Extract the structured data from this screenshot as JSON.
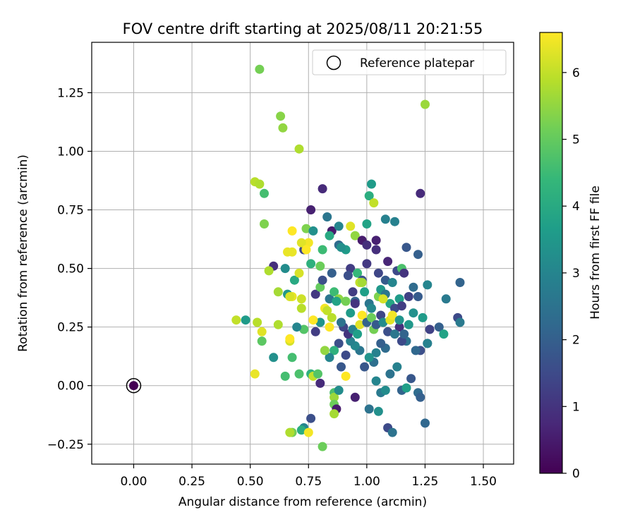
{
  "chart_data": {
    "type": "scatter",
    "title": "FOV centre drift starting at 2025/08/11 20:21:55",
    "xlabel": "Angular distance from reference (arcmin)",
    "ylabel": "Rotation from reference (arcmin)",
    "xlim": [
      -0.18,
      1.63
    ],
    "ylim": [
      -0.335,
      1.465
    ],
    "xticks": [
      "0.00",
      "0.25",
      "0.50",
      "0.75",
      "1.00",
      "1.25",
      "1.50"
    ],
    "xtick_values": [
      0,
      0.25,
      0.5,
      0.75,
      1.0,
      1.25,
      1.5
    ],
    "yticks": [
      "−0.25",
      "0.00",
      "0.25",
      "0.50",
      "0.75",
      "1.00",
      "1.25"
    ],
    "ytick_values": [
      -0.25,
      0,
      0.25,
      0.5,
      0.75,
      1.0,
      1.25
    ],
    "grid": true,
    "legend": {
      "position": "top-right",
      "entries": [
        "Reference platepar"
      ]
    },
    "reference_point": {
      "x": 0.0,
      "y": 0.0,
      "label": "Reference platepar"
    },
    "colorbar": {
      "label": "Hours from first FF file",
      "colormap": "viridis",
      "min": 0,
      "max": 6.6,
      "ticks": [
        "0",
        "1",
        "2",
        "3",
        "4",
        "5",
        "6"
      ],
      "tick_values": [
        0,
        1,
        2,
        3,
        4,
        5,
        6
      ],
      "stops": [
        "#440154",
        "#482878",
        "#3e4989",
        "#31688e",
        "#26828e",
        "#1f9e89",
        "#35b779",
        "#6ece58",
        "#b5de2b",
        "#fde725"
      ]
    },
    "points": [
      [
        0.54,
        1.35,
        5.2
      ],
      [
        0.63,
        1.15,
        5.4
      ],
      [
        0.64,
        1.1,
        5.5
      ],
      [
        1.25,
        1.2,
        5.6
      ],
      [
        0.71,
        1.01,
        5.8
      ],
      [
        0.52,
        0.87,
        5.9
      ],
      [
        0.54,
        0.86,
        5.8
      ],
      [
        0.56,
        0.82,
        4.6
      ],
      [
        0.81,
        0.84,
        0.8
      ],
      [
        1.02,
        0.86,
        3.6
      ],
      [
        1.01,
        0.81,
        4.1
      ],
      [
        1.23,
        0.82,
        0.8
      ],
      [
        1.03,
        0.78,
        6.0
      ],
      [
        0.56,
        0.69,
        5.3
      ],
      [
        0.76,
        0.75,
        0.6
      ],
      [
        0.83,
        0.72,
        2.6
      ],
      [
        0.68,
        0.66,
        6.6
      ],
      [
        0.74,
        0.67,
        5.3
      ],
      [
        0.77,
        0.66,
        3.3
      ],
      [
        0.85,
        0.66,
        0.5
      ],
      [
        0.88,
        0.68,
        3.0
      ],
      [
        0.93,
        0.68,
        6.3
      ],
      [
        1.0,
        0.69,
        3.8
      ],
      [
        1.08,
        0.71,
        2.9
      ],
      [
        1.12,
        0.7,
        2.9
      ],
      [
        0.73,
        0.58,
        1.4
      ],
      [
        0.75,
        0.61,
        6.5
      ],
      [
        0.72,
        0.61,
        6.3
      ],
      [
        0.74,
        0.58,
        6.6
      ],
      [
        0.68,
        0.57,
        6.4
      ],
      [
        0.66,
        0.57,
        6.4
      ],
      [
        0.6,
        0.51,
        0.9
      ],
      [
        0.58,
        0.49,
        5.8
      ],
      [
        0.65,
        0.5,
        3.2
      ],
      [
        0.69,
        0.45,
        4.0
      ],
      [
        0.71,
        0.48,
        6.2
      ],
      [
        0.76,
        0.52,
        4.2
      ],
      [
        0.8,
        0.51,
        5.1
      ],
      [
        0.81,
        0.58,
        4.5
      ],
      [
        0.84,
        0.64,
        4.0
      ],
      [
        0.88,
        0.6,
        2.3
      ],
      [
        0.91,
        0.58,
        3.6
      ],
      [
        0.95,
        0.64,
        5.5
      ],
      [
        0.98,
        0.62,
        0.5
      ],
      [
        1.0,
        0.6,
        0.9
      ],
      [
        1.04,
        0.62,
        0.6
      ],
      [
        1.04,
        0.58,
        0.9
      ],
      [
        0.89,
        0.59,
        3.3
      ],
      [
        1.17,
        0.59,
        1.8
      ],
      [
        1.22,
        0.56,
        2.0
      ],
      [
        1.09,
        0.53,
        0.7
      ],
      [
        1.13,
        0.49,
        1.5
      ],
      [
        1.15,
        0.5,
        4.7
      ],
      [
        1.16,
        0.48,
        1.0
      ],
      [
        0.85,
        0.48,
        2.0
      ],
      [
        0.93,
        0.5,
        1.2
      ],
      [
        0.92,
        0.47,
        1.6
      ],
      [
        0.96,
        0.48,
        4.4
      ],
      [
        0.98,
        0.45,
        1.7
      ],
      [
        1.0,
        0.52,
        1.1
      ],
      [
        1.05,
        0.48,
        1.4
      ],
      [
        1.08,
        0.45,
        1.9
      ],
      [
        1.11,
        0.44,
        3.0
      ],
      [
        0.62,
        0.4,
        5.7
      ],
      [
        0.66,
        0.39,
        3.5
      ],
      [
        0.68,
        0.38,
        6.4
      ],
      [
        0.67,
        0.38,
        6.2
      ],
      [
        0.72,
        0.37,
        6.1
      ],
      [
        0.72,
        0.33,
        5.9
      ],
      [
        0.78,
        0.39,
        1.1
      ],
      [
        0.8,
        0.42,
        5.0
      ],
      [
        0.81,
        0.45,
        1.6
      ],
      [
        0.84,
        0.37,
        2.6
      ],
      [
        0.86,
        0.4,
        4.5
      ],
      [
        0.88,
        0.37,
        5.5
      ],
      [
        0.91,
        0.36,
        5.2
      ],
      [
        0.94,
        0.4,
        1.2
      ],
      [
        0.95,
        0.36,
        2.1
      ],
      [
        0.97,
        0.44,
        6.0
      ],
      [
        0.98,
        0.44,
        5.7
      ],
      [
        0.99,
        0.4,
        3.7
      ],
      [
        1.01,
        0.35,
        2.6
      ],
      [
        1.05,
        0.38,
        5.3
      ],
      [
        1.06,
        0.41,
        3.5
      ],
      [
        1.08,
        0.39,
        2.6
      ],
      [
        1.1,
        0.35,
        3.9
      ],
      [
        1.12,
        0.33,
        1.5
      ],
      [
        1.14,
        0.37,
        3.6
      ],
      [
        1.15,
        0.34,
        1.2
      ],
      [
        1.18,
        0.38,
        1.3
      ],
      [
        1.2,
        0.42,
        2.3
      ],
      [
        1.22,
        0.38,
        1.9
      ],
      [
        1.26,
        0.43,
        3.0
      ],
      [
        1.34,
        0.37,
        2.7
      ],
      [
        1.4,
        0.44,
        2.1
      ],
      [
        1.39,
        0.29,
        1.5
      ],
      [
        1.4,
        0.27,
        2.7
      ],
      [
        1.31,
        0.25,
        2.0
      ],
      [
        1.33,
        0.22,
        3.8
      ],
      [
        1.27,
        0.24,
        1.3
      ],
      [
        1.24,
        0.29,
        3.6
      ],
      [
        1.26,
        0.18,
        2.1
      ],
      [
        1.26,
        0.18,
        2.9
      ],
      [
        1.23,
        0.15,
        1.6
      ],
      [
        1.21,
        0.15,
        2.2
      ],
      [
        1.17,
        0.19,
        2.5
      ],
      [
        1.14,
        0.25,
        0.9
      ],
      [
        1.15,
        0.19,
        1.5
      ],
      [
        1.13,
        0.08,
        2.9
      ],
      [
        1.1,
        0.05,
        2.5
      ],
      [
        1.08,
        0.16,
        2.3
      ],
      [
        1.06,
        0.18,
        2.0
      ],
      [
        1.04,
        0.14,
        2.9
      ],
      [
        1.03,
        0.1,
        2.4
      ],
      [
        1.01,
        0.12,
        3.4
      ],
      [
        0.99,
        0.08,
        1.8
      ],
      [
        0.97,
        0.15,
        2.6
      ],
      [
        0.95,
        0.17,
        3.1
      ],
      [
        0.93,
        0.19,
        2.9
      ],
      [
        0.91,
        0.13,
        1.5
      ],
      [
        0.89,
        0.08,
        1.8
      ],
      [
        0.88,
        0.18,
        1.6
      ],
      [
        0.86,
        0.15,
        4.2
      ],
      [
        0.84,
        0.12,
        3.0
      ],
      [
        0.82,
        0.15,
        5.5
      ],
      [
        0.8,
        0.27,
        3.4
      ],
      [
        0.78,
        0.23,
        1.2
      ],
      [
        0.77,
        0.28,
        6.6
      ],
      [
        0.76,
        0.05,
        4.2
      ],
      [
        0.77,
        0.04,
        6.0
      ],
      [
        0.79,
        0.05,
        4.8
      ],
      [
        0.8,
        0.01,
        0.8
      ],
      [
        0.73,
        0.24,
        4.8
      ],
      [
        0.7,
        0.25,
        3.0
      ],
      [
        0.67,
        0.19,
        6.2
      ],
      [
        0.67,
        0.2,
        6.6
      ],
      [
        0.62,
        0.26,
        5.8
      ],
      [
        0.55,
        0.23,
        6.3
      ],
      [
        0.53,
        0.27,
        5.9
      ],
      [
        0.44,
        0.28,
        6.0
      ],
      [
        0.48,
        0.28,
        3.6
      ],
      [
        0.55,
        0.19,
        4.9
      ],
      [
        0.6,
        0.12,
        3.3
      ],
      [
        0.68,
        0.12,
        4.6
      ],
      [
        0.52,
        0.05,
        6.4
      ],
      [
        0.65,
        0.04,
        4.6
      ],
      [
        0.71,
        0.05,
        4.7
      ],
      [
        0.86,
        -0.03,
        4.7
      ],
      [
        0.86,
        -0.05,
        5.6
      ],
      [
        0.86,
        -0.08,
        5.1
      ],
      [
        0.87,
        -0.1,
        0.5
      ],
      [
        0.88,
        -0.02,
        3.2
      ],
      [
        0.86,
        -0.12,
        5.7
      ],
      [
        0.95,
        -0.05,
        0.6
      ],
      [
        1.01,
        -0.1,
        2.5
      ],
      [
        1.05,
        -0.11,
        3.3
      ],
      [
        1.04,
        0.02,
        3.0
      ],
      [
        1.06,
        -0.03,
        2.7
      ],
      [
        1.08,
        -0.02,
        3.2
      ],
      [
        1.09,
        -0.18,
        1.5
      ],
      [
        1.11,
        -0.2,
        2.5
      ],
      [
        1.15,
        -0.02,
        2.1
      ],
      [
        1.17,
        -0.01,
        3.7
      ],
      [
        1.19,
        0.03,
        1.8
      ],
      [
        1.22,
        -0.03,
        2.3
      ],
      [
        1.23,
        -0.05,
        2.0
      ],
      [
        1.25,
        -0.16,
        2.2
      ],
      [
        0.73,
        -0.18,
        3.0
      ],
      [
        0.72,
        -0.19,
        4.1
      ],
      [
        0.68,
        -0.2,
        5.2
      ],
      [
        0.67,
        -0.2,
        5.8
      ],
      [
        0.75,
        -0.2,
        6.5
      ],
      [
        0.76,
        -0.14,
        1.6
      ],
      [
        0.81,
        -0.26,
        5.1
      ],
      [
        0.91,
        0.04,
        6.6
      ],
      [
        0.9,
        0.25,
        1.4
      ],
      [
        0.92,
        0.22,
        1.0
      ],
      [
        0.94,
        0.24,
        2.9
      ],
      [
        0.96,
        0.22,
        3.7
      ],
      [
        0.97,
        0.26,
        6.3
      ],
      [
        0.98,
        0.3,
        6.6
      ],
      [
        1.0,
        0.27,
        2.1
      ],
      [
        1.02,
        0.29,
        5.1
      ],
      [
        1.03,
        0.24,
        5.2
      ],
      [
        1.04,
        0.26,
        1.9
      ],
      [
        1.06,
        0.3,
        1.4
      ],
      [
        1.07,
        0.27,
        3.2
      ],
      [
        1.09,
        0.23,
        1.6
      ],
      [
        1.1,
        0.28,
        6.3
      ],
      [
        1.11,
        0.3,
        6.5
      ],
      [
        1.12,
        0.22,
        2.6
      ],
      [
        1.14,
        0.28,
        3.4
      ],
      [
        1.16,
        0.22,
        2.1
      ],
      [
        1.18,
        0.26,
        3.5
      ],
      [
        1.2,
        0.31,
        3.3
      ],
      [
        0.82,
        0.33,
        6.5
      ],
      [
        0.83,
        0.32,
        6.0
      ],
      [
        0.84,
        0.25,
        6.6
      ],
      [
        0.85,
        0.29,
        5.9
      ],
      [
        0.87,
        0.36,
        3.8
      ],
      [
        0.89,
        0.27,
        2.5
      ],
      [
        0.93,
        0.31,
        3.6
      ],
      [
        0.95,
        0.35,
        1.0
      ],
      [
        1.02,
        0.33,
        3.1
      ],
      [
        1.07,
        0.37,
        6.2
      ]
    ]
  }
}
